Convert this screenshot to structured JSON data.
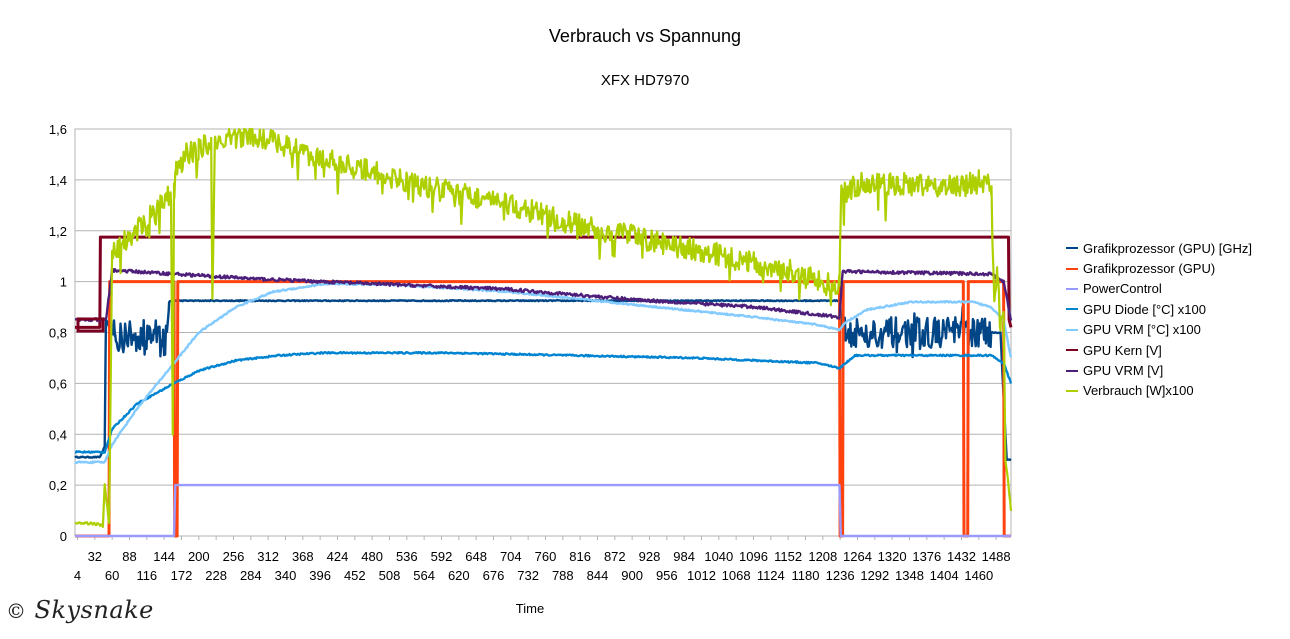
{
  "chart_data": {
    "type": "line",
    "title": "Verbrauch vs Spannung",
    "subtitle": "XFX HD7970",
    "xlabel": "Time",
    "ylabel": "",
    "ylim": [
      0,
      1.6
    ],
    "xlim": [
      0,
      1512
    ],
    "grid": true,
    "legend_position": "right",
    "y_ticks": [
      "0",
      "0,2",
      "0,4",
      "0,6",
      "0,8",
      "1",
      "1,2",
      "1,4",
      "1,6"
    ],
    "x_ticks_upper": [
      "32",
      "88",
      "144",
      "200",
      "256",
      "312",
      "368",
      "424",
      "480",
      "536",
      "592",
      "648",
      "704",
      "760",
      "816",
      "872",
      "928",
      "984",
      "1040",
      "1096",
      "1152",
      "1208",
      "1264",
      "1320",
      "1376",
      "1432",
      "1488"
    ],
    "x_ticks_lower": [
      "4",
      "60",
      "116",
      "172",
      "228",
      "284",
      "340",
      "396",
      "452",
      "508",
      "564",
      "620",
      "676",
      "732",
      "788",
      "844",
      "900",
      "956",
      "1012",
      "1068",
      "1124",
      "1180",
      "1236",
      "1292",
      "1348",
      "1404",
      "1460"
    ],
    "series": [
      {
        "name": "Grafikprozessor (GPU) [GHz]",
        "color": "#004586",
        "x": [
          0,
          40,
          48,
          50,
          60,
          65,
          150,
          152,
          160,
          1235,
          1240,
          1480,
          1495,
          1505,
          1512
        ],
        "y": [
          0.31,
          0.31,
          0.35,
          0.85,
          0.8,
          0.78,
          0.8,
          0.92,
          0.925,
          0.925,
          0.8,
          0.8,
          0.8,
          0.3,
          0.3
        ]
      },
      {
        "name": "Grafikprozessor (GPU)",
        "color": "#ff420e",
        "x": [
          0,
          55,
          56,
          160,
          161,
          165,
          166,
          1235,
          1236,
          1240,
          1241,
          1435,
          1436,
          1442,
          1443,
          1500,
          1501,
          1512
        ],
        "y": [
          0,
          0,
          1,
          1,
          0,
          0,
          1,
          1,
          0,
          0,
          1,
          1,
          0,
          0,
          1,
          1,
          0,
          0
        ]
      },
      {
        "name": "PowerControl",
        "color": "#9999ff",
        "x": [
          0,
          160,
          162,
          1235,
          1237,
          1512
        ],
        "y": [
          0,
          0,
          0.2,
          0.2,
          0,
          0
        ]
      },
      {
        "name": "GPU Diode [°C] x100",
        "color": "#0084d1",
        "x": [
          0,
          48,
          60,
          100,
          160,
          200,
          260,
          330,
          400,
          600,
          800,
          1000,
          1200,
          1235,
          1245,
          1260,
          1400,
          1480,
          1500,
          1512
        ],
        "y": [
          0.33,
          0.33,
          0.42,
          0.52,
          0.6,
          0.65,
          0.69,
          0.71,
          0.72,
          0.72,
          0.71,
          0.7,
          0.68,
          0.66,
          0.68,
          0.71,
          0.71,
          0.71,
          0.68,
          0.6
        ]
      },
      {
        "name": "GPU VRM [°C] x100",
        "color": "#83caff",
        "x": [
          0,
          48,
          60,
          100,
          160,
          200,
          260,
          320,
          400,
          500,
          700,
          900,
          1100,
          1200,
          1235,
          1245,
          1280,
          1350,
          1450,
          1480,
          1500,
          1512
        ],
        "y": [
          0.29,
          0.29,
          0.36,
          0.5,
          0.68,
          0.8,
          0.9,
          0.96,
          0.99,
          0.99,
          0.96,
          0.91,
          0.86,
          0.83,
          0.81,
          0.84,
          0.89,
          0.92,
          0.92,
          0.9,
          0.85,
          0.7
        ]
      },
      {
        "name": "GPU Kern [V]",
        "color": "#7e0021",
        "x": [
          0,
          40,
          41,
          46,
          47,
          1508,
          1509,
          1512
        ],
        "y": [
          0.82,
          0.82,
          1.175,
          1.175,
          1.175,
          1.175,
          0.85,
          0.82
        ]
      },
      {
        "name": "GPU VRM [V]",
        "color": "#4d1f7a",
        "x": [
          0,
          40,
          50,
          60,
          160,
          300,
          500,
          700,
          900,
          1100,
          1200,
          1235,
          1240,
          1480,
          1500,
          1512
        ],
        "y": [
          0.85,
          0.85,
          0.85,
          1.045,
          1.03,
          1.01,
          0.99,
          0.97,
          0.93,
          0.9,
          0.87,
          0.86,
          1.04,
          1.03,
          1.0,
          0.85
        ]
      },
      {
        "name": "Verbrauch [W]x100",
        "color": "#aecf00",
        "x": [
          0,
          30,
          45,
          48,
          55,
          60,
          80,
          100,
          120,
          140,
          155,
          158,
          160,
          163,
          165,
          180,
          200,
          220,
          222,
          226,
          240,
          260,
          280,
          300,
          320,
          360,
          400,
          450,
          500,
          550,
          600,
          650,
          700,
          750,
          800,
          850,
          900,
          950,
          1000,
          1050,
          1100,
          1150,
          1200,
          1230,
          1235,
          1238,
          1245,
          1260,
          1300,
          1350,
          1400,
          1440,
          1460,
          1480,
          1485,
          1490,
          1495,
          1500,
          1503,
          1508,
          1512
        ],
        "y": [
          0.05,
          0.05,
          0.04,
          0.2,
          0.05,
          1.1,
          1.16,
          1.2,
          1.26,
          1.3,
          1.35,
          0.4,
          1.42,
          1.45,
          1.43,
          1.5,
          1.52,
          1.55,
          0.9,
          1.54,
          1.56,
          1.57,
          1.57,
          1.57,
          1.55,
          1.52,
          1.48,
          1.45,
          1.42,
          1.38,
          1.36,
          1.33,
          1.3,
          1.27,
          1.23,
          1.2,
          1.18,
          1.15,
          1.13,
          1.1,
          1.07,
          1.05,
          1.0,
          0.98,
          1.0,
          1.36,
          1.35,
          1.38,
          1.39,
          1.38,
          1.37,
          1.38,
          1.4,
          1.38,
          0.9,
          1.05,
          0.8,
          0.95,
          0.3,
          0.2,
          0.1
        ]
      }
    ]
  },
  "watermark": {
    "symbol": "©",
    "text": "Skysnake"
  }
}
